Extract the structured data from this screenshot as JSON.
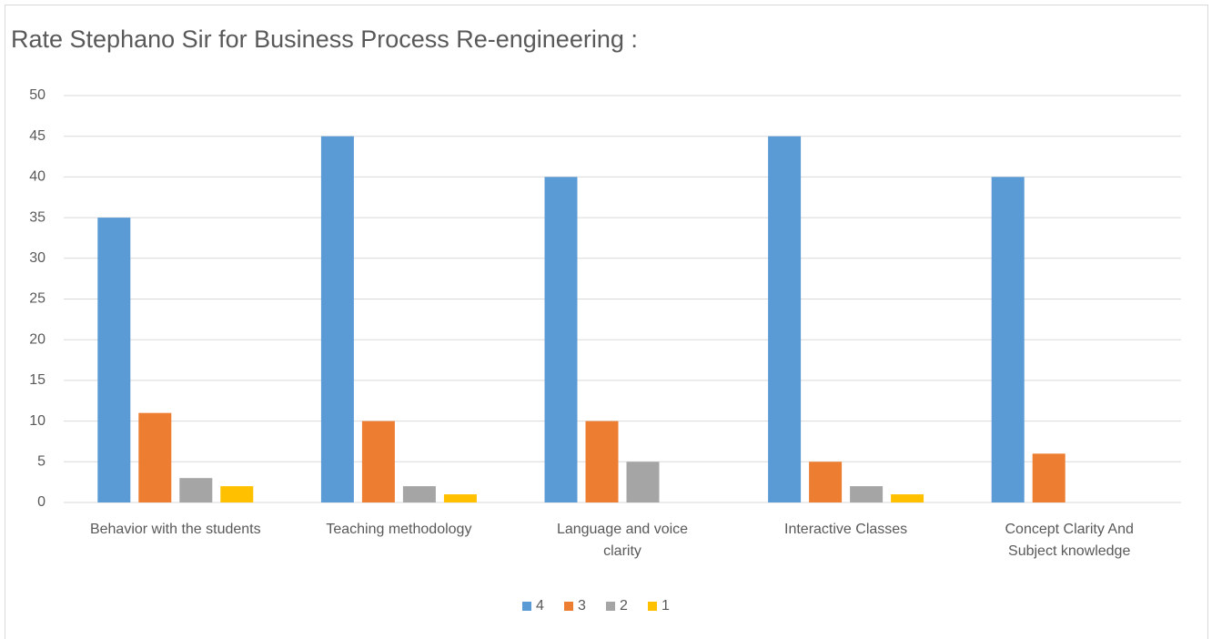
{
  "chart_data": {
    "type": "bar",
    "title": "Rate Stephano Sir for Business Process Re-engineering :",
    "categories": [
      "Behavior with the students",
      "Teaching methodology",
      "Language and voice clarity",
      "Interactive Classes",
      "Concept Clarity And Subject knowledge"
    ],
    "series": [
      {
        "name": "4",
        "color": "#5b9bd5",
        "values": [
          35,
          45,
          40,
          45,
          40
        ]
      },
      {
        "name": "3",
        "color": "#ed7d31",
        "values": [
          11,
          10,
          10,
          5,
          6
        ]
      },
      {
        "name": "2",
        "color": "#a5a5a5",
        "values": [
          3,
          2,
          5,
          2,
          0
        ]
      },
      {
        "name": "1",
        "color": "#ffc000",
        "values": [
          2,
          1,
          0,
          1,
          0
        ]
      }
    ],
    "ylim": [
      0,
      50
    ],
    "yticks": [
      0,
      5,
      10,
      15,
      20,
      25,
      30,
      35,
      40,
      45,
      50
    ],
    "grid": true,
    "legend": "bottom"
  }
}
